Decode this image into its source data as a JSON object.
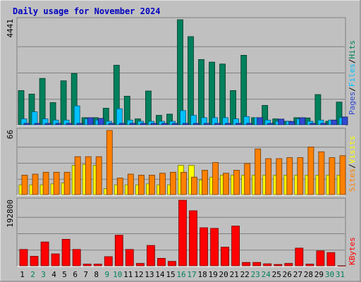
{
  "title": "Daily usage for November 2024",
  "colors": {
    "background": "#c0c0c0",
    "title": "#0000c0",
    "hits": "#00805c",
    "files": "#00c0ff",
    "pages": "#2f49d0",
    "visits": "#ffff00",
    "sites": "#ff8000",
    "kbytes": "#ff0000",
    "weekend_day": "#00805c",
    "weekday": "#000000"
  },
  "legend": {
    "hits": "Hits",
    "files": "Files",
    "pages": "Pages",
    "visits": "Visits",
    "sites": "Sites",
    "kbytes": "KBytes",
    "sep": "/"
  },
  "chart_data": [
    {
      "type": "bar",
      "name": "hits-files-pages",
      "categories": [
        "1",
        "2",
        "3",
        "4",
        "5",
        "6",
        "7",
        "8",
        "9",
        "10",
        "11",
        "12",
        "13",
        "14",
        "15",
        "16",
        "17",
        "18",
        "19",
        "20",
        "21",
        "22",
        "23",
        "24",
        "25",
        "26",
        "27",
        "28",
        "29",
        "30",
        "31"
      ],
      "y_max_label": "4441",
      "ylim": [
        0,
        4441
      ],
      "series": [
        {
          "name": "Hits",
          "values": [
            1450,
            1300,
            1960,
            940,
            1860,
            2170,
            300,
            300,
            700,
            2520,
            1210,
            250,
            1430,
            400,
            450,
            4441,
            3730,
            2760,
            2650,
            2570,
            1450,
            2940,
            300,
            820,
            250,
            150,
            300,
            290,
            1280,
            150,
            960
          ]
        },
        {
          "name": "Files",
          "values": [
            250,
            550,
            250,
            200,
            200,
            800,
            250,
            200,
            150,
            680,
            200,
            150,
            150,
            150,
            150,
            600,
            400,
            300,
            300,
            300,
            250,
            350,
            300,
            200,
            150,
            150,
            250,
            150,
            200,
            200,
            300
          ]
        },
        {
          "name": "Pages",
          "values": [
            60,
            60,
            60,
            60,
            60,
            60,
            300,
            270,
            60,
            60,
            60,
            60,
            60,
            60,
            60,
            60,
            60,
            60,
            60,
            60,
            60,
            60,
            300,
            60,
            240,
            140,
            300,
            60,
            60,
            200,
            330
          ]
        }
      ]
    },
    {
      "type": "bar",
      "name": "visits-sites",
      "categories": [
        "1",
        "2",
        "3",
        "4",
        "5",
        "6",
        "7",
        "8",
        "9",
        "10",
        "11",
        "12",
        "13",
        "14",
        "15",
        "16",
        "17",
        "18",
        "19",
        "20",
        "21",
        "22",
        "23",
        "24",
        "25",
        "26",
        "27",
        "28",
        "29",
        "30",
        "31"
      ],
      "y_max_label": "66",
      "ylim": [
        0,
        66
      ],
      "series": [
        {
          "name": "Visits",
          "values": [
            10,
            10,
            10,
            11,
            12,
            30,
            31,
            30,
            6,
            10,
            10,
            10,
            11,
            10,
            10,
            30,
            30,
            15,
            18,
            20,
            20,
            20,
            20,
            20,
            20,
            20,
            20,
            20,
            20,
            20,
            20
          ]
        },
        {
          "name": "Sites",
          "values": [
            20,
            21,
            23,
            23,
            23,
            39,
            39,
            39,
            66,
            17,
            21,
            20,
            20,
            22,
            23,
            23,
            18,
            25,
            33,
            22,
            25,
            32,
            47,
            37,
            37,
            38,
            38,
            49,
            44,
            38,
            40
          ]
        }
      ]
    },
    {
      "type": "bar",
      "name": "kbytes",
      "categories": [
        "1",
        "2",
        "3",
        "4",
        "5",
        "6",
        "7",
        "8",
        "9",
        "10",
        "11",
        "12",
        "13",
        "14",
        "15",
        "16",
        "17",
        "18",
        "19",
        "20",
        "21",
        "22",
        "23",
        "24",
        "25",
        "26",
        "27",
        "28",
        "29",
        "30",
        "31"
      ],
      "y_max_label": "192800",
      "ylim": [
        0,
        192800
      ],
      "series": [
        {
          "name": "KBytes",
          "values": [
            48000,
            28000,
            70000,
            35000,
            78000,
            48000,
            5000,
            5000,
            27000,
            90000,
            48000,
            7000,
            60000,
            22000,
            13000,
            192800,
            162000,
            112000,
            110000,
            55000,
            117000,
            10000,
            10000,
            6000,
            4000,
            7000,
            52000,
            5000,
            44000,
            39000,
            0
          ]
        }
      ]
    }
  ]
}
